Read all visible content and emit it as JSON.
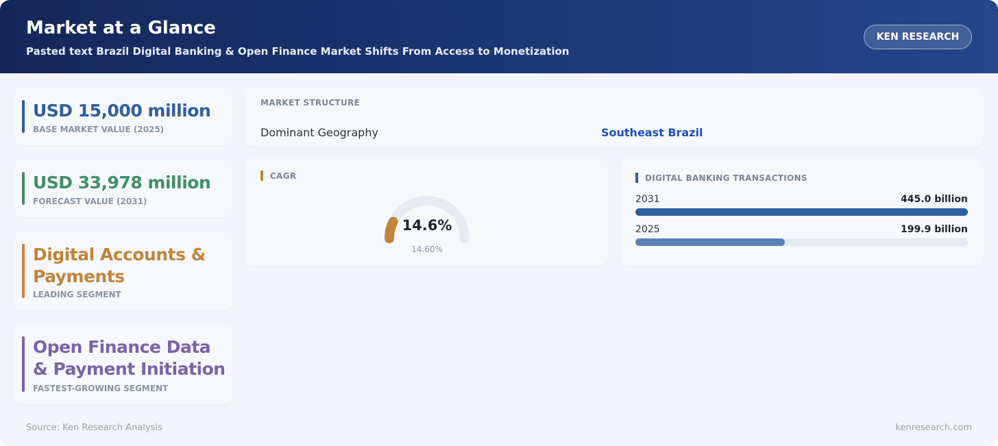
{
  "header": {
    "title": "Market at a Glance",
    "subtitle": "Pasted text Brazil Digital Banking & Open Finance Market Shifts From Access to Monetization",
    "brand": "KEN RESEARCH"
  },
  "cards": [
    {
      "value": "USD 15,000 million",
      "label": "BASE MARKET VALUE (2025)",
      "color": "#2f5f9e"
    },
    {
      "value": "USD 33,978 million",
      "label": "FORECAST VALUE (2031)",
      "color": "#3f8f6a"
    },
    {
      "value": "Digital Accounts & Payments",
      "label": "LEADING SEGMENT",
      "color": "#c0853a"
    },
    {
      "value": "Open Finance Data & Payment Initiation",
      "label": "FASTEST-GROWING SEGMENT",
      "color": "#7a64a8"
    }
  ],
  "market_structure": {
    "title": "MARKET STRUCTURE",
    "key": "Dominant Geography",
    "value": "Southeast Brazil"
  },
  "chart_data": [
    {
      "type": "gauge",
      "title": "CAGR",
      "value": 14.6,
      "value_label": "14.6%",
      "sub_label": "14.60%",
      "range": [
        0,
        100
      ],
      "color": "#c0853a"
    },
    {
      "type": "bar",
      "title": "DIGITAL BANKING TRANSACTIONS",
      "categories": [
        "2031",
        "2025"
      ],
      "values": [
        445.0,
        199.9
      ],
      "value_labels": [
        "445.0 billion",
        "199.9 billion"
      ],
      "colors": [
        "#2f5f9e",
        "#5b82b8"
      ]
    }
  ],
  "footer": {
    "source": "Source: Ken Research Analysis",
    "site": "kenresearch.com"
  }
}
